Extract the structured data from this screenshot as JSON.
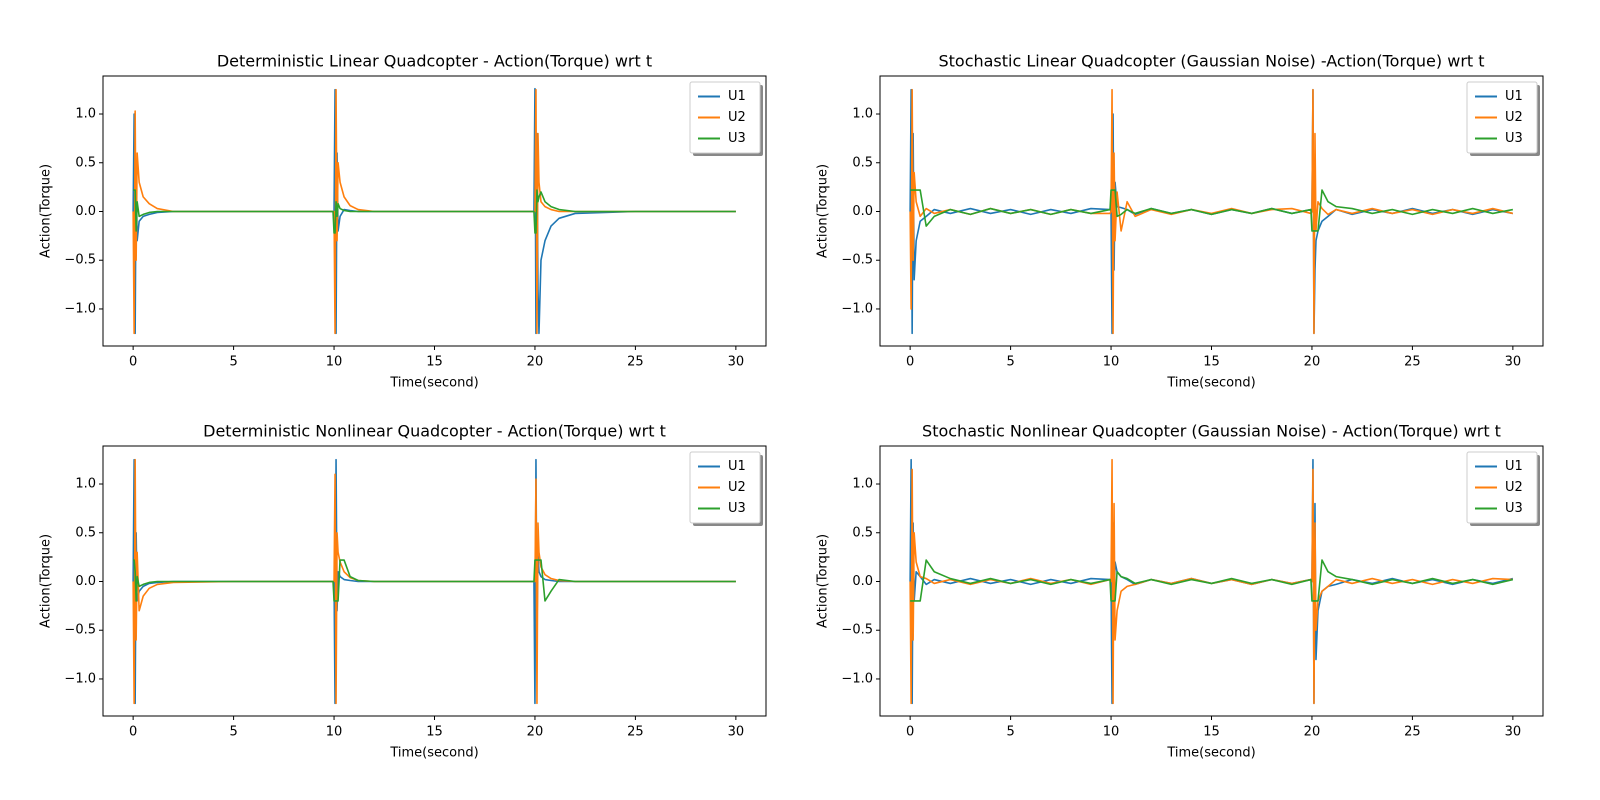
{
  "chart_data": [
    {
      "type": "line",
      "title": "Deterministic Linear Quadcopter - Action(Torque) wrt t",
      "xlabel": "Time(second)",
      "ylabel": "Action(Torque)",
      "xlim": [
        -1.5,
        31.5
      ],
      "ylim": [
        -1.38,
        1.39
      ],
      "xticks": [
        0,
        5,
        10,
        15,
        20,
        25,
        30
      ],
      "yticks": [
        {
          "value": -1.0,
          "label": "−1.0"
        },
        {
          "value": -0.5,
          "label": "−0.5"
        },
        {
          "value": 0.0,
          "label": "0.0"
        },
        {
          "value": 0.5,
          "label": "0.5"
        },
        {
          "value": 1.0,
          "label": "1.0"
        }
      ],
      "legend": "upper right",
      "x": [
        0,
        0.05,
        0.1,
        0.15,
        0.2,
        0.3,
        0.5,
        0.8,
        1.2,
        2,
        5,
        9.95,
        10,
        10.05,
        10.1,
        10.15,
        10.2,
        10.3,
        10.5,
        10.8,
        11.2,
        12,
        15,
        19.95,
        20,
        20.05,
        20.1,
        20.15,
        20.2,
        20.3,
        20.5,
        20.8,
        21.2,
        22,
        25,
        30
      ],
      "series": [
        {
          "name": "U1",
          "color": "#1f77b4",
          "values": [
            0,
            1.0,
            -1.25,
            0.5,
            -0.3,
            -0.1,
            -0.05,
            -0.03,
            -0.01,
            0,
            0,
            0,
            0,
            1.25,
            -1.25,
            0.6,
            -0.2,
            -0.05,
            0.02,
            0.01,
            0,
            0,
            0,
            0,
            1.26,
            -1.25,
            0.8,
            -0.8,
            -1.25,
            -0.5,
            -0.3,
            -0.15,
            -0.07,
            -0.02,
            0,
            0
          ]
        },
        {
          "name": "U2",
          "color": "#ff7f0e",
          "values": [
            0,
            -1.25,
            1.03,
            -0.5,
            0.6,
            0.3,
            0.15,
            0.08,
            0.03,
            0,
            0,
            0,
            0,
            -1.25,
            1.25,
            -0.3,
            0.5,
            0.3,
            0.15,
            0.06,
            0.02,
            0,
            0,
            0,
            0,
            1.25,
            -1.25,
            0.8,
            0.3,
            0.1,
            0.05,
            0.02,
            0,
            0,
            0,
            0
          ]
        },
        {
          "name": "U3",
          "color": "#2ca02c",
          "values": [
            0.22,
            0.22,
            0.22,
            -0.2,
            0.1,
            -0.05,
            -0.03,
            -0.01,
            0,
            0,
            0,
            0,
            -0.22,
            -0.22,
            0.1,
            -0.05,
            0.08,
            0.03,
            0.01,
            0,
            0,
            0,
            0,
            0,
            -0.22,
            -0.22,
            0.22,
            0.1,
            0.15,
            0.2,
            0.1,
            0.05,
            0.02,
            0,
            0,
            0
          ]
        }
      ]
    },
    {
      "type": "line",
      "title": "Stochastic Linear Quadcopter (Gaussian Noise) -Action(Torque) wrt t",
      "xlabel": "Time(second)",
      "ylabel": "Action(Torque)",
      "xlim": [
        -1.5,
        31.5
      ],
      "ylim": [
        -1.38,
        1.39
      ],
      "xticks": [
        0,
        5,
        10,
        15,
        20,
        25,
        30
      ],
      "yticks": [
        {
          "value": -1.0,
          "label": "−1.0"
        },
        {
          "value": -0.5,
          "label": "−0.5"
        },
        {
          "value": 0.0,
          "label": "0.0"
        },
        {
          "value": 0.5,
          "label": "0.5"
        },
        {
          "value": 1.0,
          "label": "1.0"
        }
      ],
      "legend": "upper right",
      "x": [
        0,
        0.05,
        0.1,
        0.15,
        0.2,
        0.3,
        0.5,
        0.8,
        1.2,
        2,
        3,
        4,
        5,
        6,
        7,
        8,
        9,
        9.95,
        10,
        10.05,
        10.1,
        10.15,
        10.2,
        10.3,
        10.5,
        10.8,
        11.2,
        12,
        13,
        14,
        15,
        16,
        17,
        18,
        19,
        19.95,
        20,
        20.05,
        20.1,
        20.15,
        20.2,
        20.3,
        20.5,
        20.8,
        21.2,
        22,
        23,
        24,
        25,
        26,
        27,
        28,
        29,
        30
      ],
      "series": [
        {
          "name": "U1",
          "color": "#1f77b4",
          "values": [
            0,
            1.25,
            -1.25,
            0.8,
            -0.7,
            -0.3,
            -0.1,
            -0.05,
            0.02,
            -0.02,
            0.03,
            -0.02,
            0.02,
            -0.03,
            0.02,
            -0.02,
            0.03,
            0.02,
            0,
            -1.25,
            1.0,
            -0.6,
            0.3,
            0.05,
            0.04,
            0.02,
            -0.03,
            0.03,
            -0.02,
            0.02,
            -0.03,
            0.02,
            -0.02,
            0.03,
            -0.02,
            0.02,
            0,
            1.25,
            -1.25,
            -0.6,
            -0.3,
            -0.2,
            -0.1,
            -0.05,
            0.02,
            -0.03,
            0.02,
            -0.02,
            0.03,
            -0.02,
            0.02,
            -0.03,
            0.02,
            -0.02
          ]
        },
        {
          "name": "U2",
          "color": "#ff7f0e",
          "values": [
            0,
            -1.0,
            1.25,
            -0.5,
            0.4,
            0.1,
            -0.05,
            0.03,
            -0.02,
            0.02,
            -0.03,
            0.03,
            -0.02,
            0.02,
            -0.03,
            0.02,
            -0.02,
            -0.02,
            0,
            1.25,
            -1.25,
            0.6,
            -0.3,
            0.2,
            -0.2,
            0.1,
            -0.05,
            0.02,
            -0.03,
            0.02,
            -0.02,
            0.03,
            -0.02,
            0.02,
            0.03,
            -0.02,
            0,
            1.25,
            -1.25,
            0.8,
            -0.2,
            0.1,
            0.03,
            -0.03,
            0.02,
            -0.02,
            0.03,
            -0.02,
            0.02,
            -0.03,
            0.02,
            -0.02,
            0.03,
            -0.02
          ]
        },
        {
          "name": "U3",
          "color": "#2ca02c",
          "values": [
            0.22,
            0.22,
            0.22,
            0.22,
            0.22,
            0.22,
            0.22,
            -0.15,
            -0.05,
            0.02,
            -0.03,
            0.03,
            -0.02,
            0.02,
            -0.03,
            0.02,
            -0.02,
            0.02,
            0.22,
            0.22,
            0.22,
            0.22,
            0.22,
            -0.05,
            -0.03,
            0.02,
            -0.02,
            0.03,
            -0.02,
            0.02,
            -0.03,
            0.02,
            -0.02,
            0.03,
            -0.02,
            0.02,
            -0.2,
            -0.2,
            -0.2,
            -0.2,
            -0.2,
            -0.2,
            0.22,
            0.1,
            0.05,
            0.03,
            -0.02,
            0.02,
            -0.03,
            0.02,
            -0.02,
            0.03,
            -0.02,
            0.02
          ]
        }
      ]
    },
    {
      "type": "line",
      "title": "Deterministic Nonlinear Quadcopter - Action(Torque) wrt t",
      "xlabel": "Time(second)",
      "ylabel": "Action(Torque)",
      "xlim": [
        -1.5,
        31.5
      ],
      "ylim": [
        -1.38,
        1.39
      ],
      "xticks": [
        0,
        5,
        10,
        15,
        20,
        25,
        30
      ],
      "yticks": [
        {
          "value": -1.0,
          "label": "−1.0"
        },
        {
          "value": -0.5,
          "label": "−0.5"
        },
        {
          "value": 0.0,
          "label": "0.0"
        },
        {
          "value": 0.5,
          "label": "0.5"
        },
        {
          "value": 1.0,
          "label": "1.0"
        }
      ],
      "legend": "upper right",
      "x": [
        0,
        0.05,
        0.1,
        0.15,
        0.2,
        0.3,
        0.5,
        0.8,
        1.2,
        2,
        5,
        9.95,
        10,
        10.05,
        10.1,
        10.15,
        10.2,
        10.3,
        10.5,
        10.8,
        11.2,
        12,
        15,
        19.95,
        20,
        20.05,
        20.1,
        20.15,
        20.2,
        20.3,
        20.5,
        20.8,
        21.2,
        22,
        25,
        30
      ],
      "series": [
        {
          "name": "U1",
          "color": "#1f77b4",
          "values": [
            0,
            1.25,
            -1.25,
            0.5,
            -0.2,
            -0.1,
            -0.05,
            -0.02,
            -0.01,
            0,
            0,
            0,
            0,
            -1.25,
            1.25,
            -0.3,
            0.1,
            0.05,
            0.02,
            0.01,
            0,
            0,
            0,
            0,
            -1.25,
            1.25,
            -0.5,
            0.3,
            0.1,
            0.05,
            0.02,
            0.01,
            0,
            0,
            0,
            0
          ]
        },
        {
          "name": "U2",
          "color": "#ff7f0e",
          "values": [
            0,
            -1.25,
            1.25,
            -0.6,
            0.3,
            -0.3,
            -0.15,
            -0.07,
            -0.03,
            -0.01,
            0,
            0,
            0,
            1.1,
            -1.25,
            0.5,
            0.3,
            0.2,
            0.1,
            0.04,
            0.01,
            0,
            0,
            0,
            0,
            1.05,
            -1.25,
            0.6,
            0.3,
            0.15,
            0.07,
            0.03,
            0.01,
            0,
            0,
            0
          ]
        },
        {
          "name": "U3",
          "color": "#2ca02c",
          "values": [
            0.22,
            0.22,
            0.1,
            -0.2,
            0.05,
            -0.05,
            -0.03,
            -0.01,
            0,
            0,
            0,
            0,
            -0.2,
            -0.2,
            -0.2,
            -0.2,
            -0.2,
            0.22,
            0.22,
            0.05,
            0.01,
            0,
            0,
            0,
            0.22,
            0.22,
            0.22,
            0.22,
            0.22,
            0.22,
            -0.2,
            -0.1,
            0.02,
            0,
            0,
            0
          ]
        }
      ]
    },
    {
      "type": "line",
      "title": "Stochastic Nonlinear Quadcopter (Gaussian Noise) - Action(Torque) wrt t",
      "xlabel": "Time(second)",
      "ylabel": "Action(Torque)",
      "xlim": [
        -1.5,
        31.5
      ],
      "ylim": [
        -1.38,
        1.39
      ],
      "xticks": [
        0,
        5,
        10,
        15,
        20,
        25,
        30
      ],
      "yticks": [
        {
          "value": -1.0,
          "label": "−1.0"
        },
        {
          "value": -0.5,
          "label": "−0.5"
        },
        {
          "value": 0.0,
          "label": "0.0"
        },
        {
          "value": 0.5,
          "label": "0.5"
        },
        {
          "value": 1.0,
          "label": "1.0"
        }
      ],
      "legend": "upper right",
      "x": [
        0,
        0.05,
        0.1,
        0.15,
        0.2,
        0.3,
        0.5,
        0.8,
        1.2,
        2,
        3,
        4,
        5,
        6,
        7,
        8,
        9,
        9.95,
        10,
        10.05,
        10.1,
        10.15,
        10.2,
        10.3,
        10.5,
        10.8,
        11.2,
        12,
        13,
        14,
        15,
        16,
        17,
        18,
        19,
        19.95,
        20,
        20.05,
        20.1,
        20.15,
        20.2,
        20.3,
        20.5,
        20.8,
        21.2,
        22,
        23,
        24,
        25,
        26,
        27,
        28,
        29,
        30
      ],
      "series": [
        {
          "name": "U1",
          "color": "#1f77b4",
          "values": [
            0,
            1.25,
            -1.25,
            0.6,
            -0.2,
            0.1,
            0.05,
            -0.03,
            0.02,
            -0.02,
            0.03,
            -0.02,
            0.02,
            -0.03,
            0.02,
            -0.02,
            0.03,
            0.02,
            0,
            -1.25,
            0.6,
            -0.3,
            0.2,
            0.1,
            0.05,
            0.02,
            -0.03,
            0.02,
            -0.02,
            0.03,
            -0.02,
            0.02,
            -0.03,
            0.02,
            -0.02,
            0.02,
            0,
            1.25,
            -1.25,
            0.8,
            -0.8,
            -0.3,
            -0.1,
            -0.05,
            -0.03,
            0.02,
            -0.02,
            0.03,
            -0.02,
            0.02,
            -0.03,
            0.02,
            -0.02,
            0.03
          ]
        },
        {
          "name": "U2",
          "color": "#ff7f0e",
          "values": [
            0,
            -1.25,
            1.15,
            -0.6,
            0.5,
            0.2,
            0.05,
            0.03,
            -0.02,
            0.02,
            -0.03,
            0.02,
            -0.02,
            0.03,
            -0.02,
            0.02,
            -0.03,
            0.02,
            0,
            1.25,
            -1.25,
            0.8,
            -0.6,
            -0.3,
            -0.1,
            -0.05,
            -0.03,
            0.02,
            -0.02,
            0.03,
            -0.02,
            0.02,
            -0.03,
            0.02,
            -0.02,
            0.02,
            0,
            1.15,
            -1.25,
            0.6,
            -0.5,
            -0.2,
            -0.1,
            -0.05,
            0.02,
            -0.02,
            0.03,
            -0.02,
            0.02,
            -0.03,
            0.02,
            -0.02,
            0.03,
            0.02
          ]
        },
        {
          "name": "U3",
          "color": "#2ca02c",
          "values": [
            -0.2,
            -0.2,
            -0.2,
            -0.2,
            -0.2,
            -0.2,
            -0.2,
            0.22,
            0.1,
            0.03,
            -0.02,
            0.03,
            -0.02,
            0.02,
            -0.03,
            0.02,
            -0.02,
            0.02,
            -0.2,
            -0.2,
            -0.2,
            -0.2,
            -0.2,
            0.1,
            0.05,
            0.03,
            -0.02,
            0.02,
            -0.03,
            0.02,
            -0.02,
            0.03,
            -0.02,
            0.02,
            -0.03,
            0.02,
            -0.2,
            -0.2,
            -0.2,
            -0.2,
            -0.2,
            -0.2,
            0.22,
            0.1,
            0.05,
            0.02,
            -0.03,
            0.02,
            -0.02,
            0.03,
            -0.02,
            0.02,
            -0.03,
            0.02
          ]
        }
      ]
    }
  ]
}
